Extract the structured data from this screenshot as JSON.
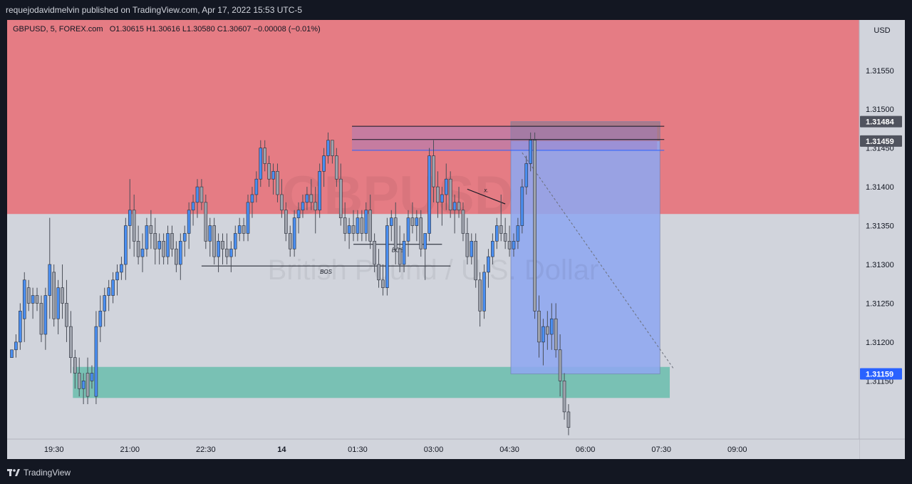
{
  "publisher_line": "requejodavidmelvin published on TradingView.com, Apr 17, 2022 15:53 UTC-5",
  "legend": {
    "symbol": "GBPUSD, 5, FOREX.com",
    "ohlc": "O1.30615  H1.30616  L1.30580  C1.30607  −0.00008 (−0.01%)"
  },
  "watermark": {
    "symbol": "GBPUSD",
    "description": "British Pound / U.S. Dollar"
  },
  "footer": {
    "brand": "TradingView",
    "brand_icon": "tradingview-logo-icon"
  },
  "colors": {
    "frame": "#131722",
    "plot_background": "#d1d4dc",
    "supply_zone": "#e57c84",
    "demand_zone": "#79c1b4",
    "short_target_box": "#8ea7f0",
    "short_stop_box": "#a07a8c",
    "candle_up": "#4a8ef0",
    "candle_down": "#9ea2ac",
    "wick": "#4a4e58",
    "price_label_last": "#2962ff",
    "price_label_level": "#50535e"
  },
  "chart_data": {
    "type": "candlestick",
    "symbol": "GBPUSD",
    "timeframe": "5",
    "currency": "USD",
    "price_axis": {
      "ticks": [
        "1.31550",
        "1.31500",
        "1.31450",
        "1.31400",
        "1.31350",
        "1.31300",
        "1.31250",
        "1.31200",
        "1.31150"
      ],
      "range": [
        1.31075,
        1.31615
      ]
    },
    "time_axis": {
      "ticks": [
        {
          "label": "19:30",
          "i": 10
        },
        {
          "label": "21:00",
          "i": 28
        },
        {
          "label": "22:30",
          "i": 46
        },
        {
          "label": "14",
          "i": 64,
          "bold": true
        },
        {
          "label": "01:30",
          "i": 82
        },
        {
          "label": "03:00",
          "i": 100
        },
        {
          "label": "04:30",
          "i": 118
        },
        {
          "label": "06:00",
          "i": 136
        },
        {
          "label": "07:30",
          "i": 154
        },
        {
          "label": "09:00",
          "i": 172
        }
      ]
    },
    "price_labels": [
      {
        "value": 1.31484,
        "text": "1.31484",
        "kind": "level"
      },
      {
        "value": 1.31459,
        "text": "1.31459",
        "kind": "level"
      },
      {
        "value": 1.31159,
        "text": "1.31159",
        "kind": "last"
      }
    ],
    "candles": [
      [
        1.3118,
        1.3119,
        1.3118,
        1.3119
      ],
      [
        1.3119,
        1.3121,
        1.3118,
        1.312
      ],
      [
        1.312,
        1.3125,
        1.3119,
        1.3124
      ],
      [
        1.3123,
        1.3129,
        1.312,
        1.3128
      ],
      [
        1.3127,
        1.3128,
        1.3124,
        1.3125
      ],
      [
        1.3125,
        1.3127,
        1.3123,
        1.3126
      ],
      [
        1.3126,
        1.3127,
        1.3124,
        1.3125
      ],
      [
        1.3125,
        1.3126,
        1.312,
        1.3121
      ],
      [
        1.3121,
        1.3127,
        1.3119,
        1.3126
      ],
      [
        1.3126,
        1.3136,
        1.3123,
        1.313
      ],
      [
        1.3129,
        1.313,
        1.3122,
        1.3123
      ],
      [
        1.3123,
        1.3128,
        1.3121,
        1.3127
      ],
      [
        1.3127,
        1.313,
        1.3123,
        1.3125
      ],
      [
        1.3125,
        1.3128,
        1.312,
        1.3122
      ],
      [
        1.3122,
        1.3124,
        1.3116,
        1.3118
      ],
      [
        1.3118,
        1.3119,
        1.3114,
        1.3116
      ],
      [
        1.3116,
        1.3118,
        1.3113,
        1.3114
      ],
      [
        1.3114,
        1.3116,
        1.3112,
        1.3115
      ],
      [
        1.3116,
        1.3118,
        1.3112,
        1.3113
      ],
      [
        1.3115,
        1.3117,
        1.3114,
        1.3116
      ],
      [
        1.3113,
        1.3124,
        1.3112,
        1.3122
      ],
      [
        1.3122,
        1.3126,
        1.312,
        1.3124
      ],
      [
        1.3124,
        1.3127,
        1.3122,
        1.3126
      ],
      [
        1.3126,
        1.3128,
        1.3124,
        1.3127
      ],
      [
        1.3126,
        1.3129,
        1.3125,
        1.3128
      ],
      [
        1.3128,
        1.313,
        1.3126,
        1.3129
      ],
      [
        1.3129,
        1.3131,
        1.3128,
        1.313
      ],
      [
        1.313,
        1.3136,
        1.3128,
        1.3135
      ],
      [
        1.3135,
        1.3141,
        1.3132,
        1.3137
      ],
      [
        1.3137,
        1.3139,
        1.3131,
        1.3133
      ],
      [
        1.3133,
        1.3135,
        1.313,
        1.3131
      ],
      [
        1.3131,
        1.3134,
        1.3129,
        1.3132
      ],
      [
        1.3132,
        1.3136,
        1.3131,
        1.3135
      ],
      [
        1.3135,
        1.3137,
        1.3132,
        1.3134
      ],
      [
        1.3134,
        1.3136,
        1.313,
        1.3132
      ],
      [
        1.3132,
        1.3134,
        1.313,
        1.3133
      ],
      [
        1.3133,
        1.3134,
        1.313,
        1.3131
      ],
      [
        1.3131,
        1.3135,
        1.313,
        1.3134
      ],
      [
        1.3134,
        1.3135,
        1.3131,
        1.3132
      ],
      [
        1.3132,
        1.3133,
        1.3129,
        1.313
      ],
      [
        1.313,
        1.3134,
        1.3128,
        1.3133
      ],
      [
        1.3133,
        1.3135,
        1.3131,
        1.3134
      ],
      [
        1.3134,
        1.3138,
        1.3132,
        1.3137
      ],
      [
        1.3137,
        1.3139,
        1.3135,
        1.3138
      ],
      [
        1.3138,
        1.3141,
        1.3136,
        1.314
      ],
      [
        1.314,
        1.3141,
        1.3137,
        1.3138
      ],
      [
        1.3138,
        1.3139,
        1.3132,
        1.3133
      ],
      [
        1.3133,
        1.3136,
        1.3131,
        1.3135
      ],
      [
        1.3135,
        1.3136,
        1.313,
        1.3131
      ],
      [
        1.3131,
        1.3134,
        1.3129,
        1.3133
      ],
      [
        1.3133,
        1.3134,
        1.313,
        1.3132
      ],
      [
        1.3132,
        1.3134,
        1.313,
        1.3131
      ],
      [
        1.3131,
        1.3133,
        1.3129,
        1.3132
      ],
      [
        1.3132,
        1.3135,
        1.3131,
        1.3134
      ],
      [
        1.3134,
        1.3136,
        1.3133,
        1.3135
      ],
      [
        1.3135,
        1.3136,
        1.3133,
        1.3134
      ],
      [
        1.3134,
        1.3139,
        1.3133,
        1.3138
      ],
      [
        1.3138,
        1.314,
        1.3136,
        1.3139
      ],
      [
        1.3139,
        1.3142,
        1.3138,
        1.3141
      ],
      [
        1.3141,
        1.3146,
        1.314,
        1.3145
      ],
      [
        1.3145,
        1.3146,
        1.3142,
        1.3143
      ],
      [
        1.3143,
        1.3144,
        1.314,
        1.3141
      ],
      [
        1.3141,
        1.3143,
        1.3139,
        1.3142
      ],
      [
        1.3142,
        1.3143,
        1.3138,
        1.3139
      ],
      [
        1.3139,
        1.3141,
        1.3136,
        1.3137
      ],
      [
        1.3137,
        1.3138,
        1.3133,
        1.3134
      ],
      [
        1.3134,
        1.3135,
        1.3131,
        1.3132
      ],
      [
        1.3132,
        1.3137,
        1.3131,
        1.3136
      ],
      [
        1.3136,
        1.3138,
        1.3134,
        1.3137
      ],
      [
        1.3137,
        1.3139,
        1.3136,
        1.3138
      ],
      [
        1.3138,
        1.314,
        1.3137,
        1.3139
      ],
      [
        1.3139,
        1.3141,
        1.3137,
        1.3138
      ],
      [
        1.3138,
        1.314,
        1.3134,
        1.3137
      ],
      [
        1.3137,
        1.3143,
        1.3136,
        1.3142
      ],
      [
        1.3142,
        1.3145,
        1.314,
        1.3144
      ],
      [
        1.3144,
        1.3147,
        1.3143,
        1.3146
      ],
      [
        1.3146,
        1.3146,
        1.3143,
        1.3144
      ],
      [
        1.3144,
        1.3145,
        1.314,
        1.3141
      ],
      [
        1.3141,
        1.3143,
        1.3135,
        1.3136
      ],
      [
        1.3136,
        1.3138,
        1.3133,
        1.3134
      ],
      [
        1.3134,
        1.3136,
        1.3132,
        1.3135
      ],
      [
        1.3135,
        1.3137,
        1.3133,
        1.3134
      ],
      [
        1.3134,
        1.3137,
        1.3133,
        1.3136
      ],
      [
        1.3136,
        1.3137,
        1.3133,
        1.3134
      ],
      [
        1.3134,
        1.3138,
        1.3133,
        1.3137
      ],
      [
        1.3137,
        1.3139,
        1.3132,
        1.3133
      ],
      [
        1.3133,
        1.3134,
        1.3129,
        1.313
      ],
      [
        1.313,
        1.3132,
        1.3127,
        1.3128
      ],
      [
        1.3128,
        1.313,
        1.3126,
        1.3127
      ],
      [
        1.3127,
        1.3136,
        1.3126,
        1.3135
      ],
      [
        1.3135,
        1.3137,
        1.3133,
        1.3136
      ],
      [
        1.3136,
        1.3138,
        1.313,
        1.3132
      ],
      [
        1.3132,
        1.3135,
        1.3129,
        1.313
      ],
      [
        1.313,
        1.3134,
        1.3129,
        1.3133
      ],
      [
        1.3133,
        1.3137,
        1.3131,
        1.3136
      ],
      [
        1.3136,
        1.3138,
        1.3134,
        1.3135
      ],
      [
        1.3135,
        1.3137,
        1.3133,
        1.3136
      ],
      [
        1.3136,
        1.3137,
        1.3131,
        1.3132
      ],
      [
        1.3132,
        1.3134,
        1.3128,
        1.3134
      ],
      [
        1.3134,
        1.3145,
        1.3133,
        1.3144
      ],
      [
        1.3144,
        1.3146,
        1.3138,
        1.314
      ],
      [
        1.314,
        1.3142,
        1.3136,
        1.3138
      ],
      [
        1.3138,
        1.314,
        1.3135,
        1.3139
      ],
      [
        1.3139,
        1.3143,
        1.3137,
        1.3141
      ],
      [
        1.3141,
        1.3142,
        1.3136,
        1.3137
      ],
      [
        1.3137,
        1.3139,
        1.3134,
        1.3138
      ],
      [
        1.3138,
        1.314,
        1.3136,
        1.3137
      ],
      [
        1.3137,
        1.3138,
        1.3133,
        1.3134
      ],
      [
        1.3134,
        1.3136,
        1.313,
        1.3131
      ],
      [
        1.3131,
        1.3134,
        1.313,
        1.3133
      ],
      [
        1.3133,
        1.3134,
        1.3127,
        1.3128
      ],
      [
        1.3128,
        1.3129,
        1.3122,
        1.3124
      ],
      [
        1.3124,
        1.313,
        1.3123,
        1.3129
      ],
      [
        1.3129,
        1.3132,
        1.3127,
        1.3131
      ],
      [
        1.3131,
        1.3134,
        1.313,
        1.3133
      ],
      [
        1.3133,
        1.3136,
        1.3132,
        1.3135
      ],
      [
        1.3135,
        1.3139,
        1.3133,
        1.3134
      ],
      [
        1.3134,
        1.3136,
        1.3132,
        1.3133
      ],
      [
        1.3133,
        1.3135,
        1.3131,
        1.3132
      ],
      [
        1.3132,
        1.3134,
        1.3131,
        1.3133
      ],
      [
        1.3133,
        1.3136,
        1.3132,
        1.3135
      ],
      [
        1.3135,
        1.3141,
        1.3134,
        1.314
      ],
      [
        1.314,
        1.3144,
        1.3139,
        1.3143
      ],
      [
        1.3143,
        1.3147,
        1.3142,
        1.3146
      ],
      [
        1.3146,
        1.3147,
        1.3123,
        1.3124
      ],
      [
        1.3124,
        1.3126,
        1.3118,
        1.312
      ],
      [
        1.312,
        1.3123,
        1.3117,
        1.3122
      ],
      [
        1.3122,
        1.3124,
        1.3119,
        1.3121
      ],
      [
        1.3121,
        1.3125,
        1.3119,
        1.3123
      ],
      [
        1.3123,
        1.3125,
        1.3118,
        1.3119
      ],
      [
        1.3119,
        1.3121,
        1.3113,
        1.3115
      ],
      [
        1.3115,
        1.3116,
        1.311,
        1.3111
      ],
      [
        1.3111,
        1.3112,
        1.3108,
        1.3109
      ]
    ],
    "drawings": {
      "supply_zone": {
        "from_price": 1.31615,
        "to_price": 1.31365,
        "label": ""
      },
      "demand_zone": {
        "from_price": 1.31168,
        "to_price": 1.31128,
        "from_i": 15,
        "to_i": 156
      },
      "short_position": {
        "entry": 1.31459,
        "stop": 1.31484,
        "target": 1.31159,
        "from_i": 119,
        "to_i": 153
      },
      "resistance_lines": [
        {
          "price": 1.31478,
          "from_i": 81,
          "to_i": 153
        },
        {
          "price": 1.31461,
          "from_i": 81,
          "to_i": 153
        },
        {
          "price": 1.31447,
          "from_i": 81,
          "to_i": 153,
          "blue": true
        }
      ],
      "bos_lines": [
        {
          "text": "BOS",
          "price": 1.31298,
          "from_i": 45,
          "to_i": 104
        },
        {
          "text": "BOS",
          "price": 1.31326,
          "from_i": 81,
          "to_i": 102
        }
      ],
      "trend_marker": {
        "text": "x.",
        "from": {
          "i": 108,
          "p": 1.31397
        },
        "to": {
          "i": 117,
          "p": 1.31378
        }
      },
      "projection": {
        "from": {
          "i": 121,
          "p": 1.31444
        },
        "to": {
          "i": 157,
          "p": 1.31165
        }
      }
    }
  }
}
